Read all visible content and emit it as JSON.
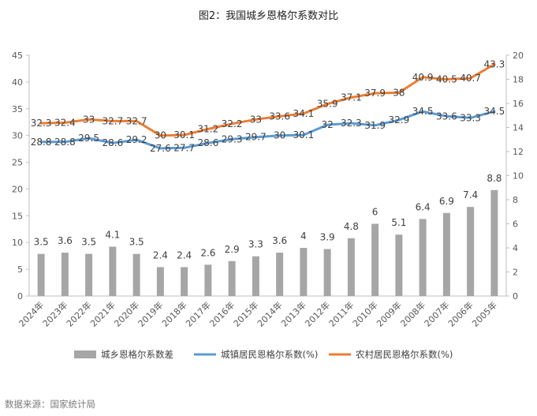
{
  "chart_data": {
    "type": "bar+line",
    "title": "图2：我国城乡恩格尔系数对比",
    "categories": [
      "2024年",
      "2023年",
      "2022年",
      "2021年",
      "2020年",
      "2019年",
      "2018年",
      "2017年",
      "2016年",
      "2015年",
      "2014年",
      "2013年",
      "2012年",
      "2011年",
      "2010年",
      "2009年",
      "2008年",
      "2007年",
      "2006年",
      "2005年"
    ],
    "series": [
      {
        "name": "城乡恩格尔系数差",
        "type": "bar",
        "axis": "right",
        "color": "#a6a6a6",
        "values": [
          3.5,
          3.6,
          3.5,
          4.1,
          3.5,
          2.4,
          2.4,
          2.6,
          2.9,
          3.3,
          3.6,
          4,
          3.9,
          4.8,
          6,
          5.1,
          6.4,
          6.9,
          7.4,
          8.8
        ]
      },
      {
        "name": "城镇居民恩格尔系数(%)",
        "type": "line",
        "axis": "left",
        "color": "#5b9bd5",
        "values": [
          28.8,
          28.8,
          29.5,
          28.6,
          29.2,
          27.6,
          27.7,
          28.6,
          29.3,
          29.7,
          30,
          30.1,
          32,
          32.3,
          31.9,
          32.9,
          34.5,
          33.6,
          33.3,
          34.5
        ]
      },
      {
        "name": "农村居民恩格尔系数(%)",
        "type": "line",
        "axis": "left",
        "color": "#ed7d31",
        "values": [
          32.3,
          32.4,
          33,
          32.7,
          32.7,
          30,
          30.1,
          31.2,
          32.2,
          33,
          33.6,
          34.1,
          35.9,
          37.1,
          37.9,
          38,
          40.9,
          40.5,
          40.7,
          43.3
        ]
      }
    ],
    "left_axis": {
      "min": 0,
      "max": 45,
      "ticks": [
        0,
        5,
        10,
        15,
        20,
        25,
        30,
        35,
        40,
        45
      ]
    },
    "right_axis": {
      "min": 0,
      "max": 20,
      "ticks": [
        0,
        2,
        4,
        6,
        8,
        10,
        12,
        14,
        16,
        18,
        20
      ]
    },
    "legend_position": "bottom",
    "grid": false
  },
  "source_note": "数据来源：国家统计局"
}
